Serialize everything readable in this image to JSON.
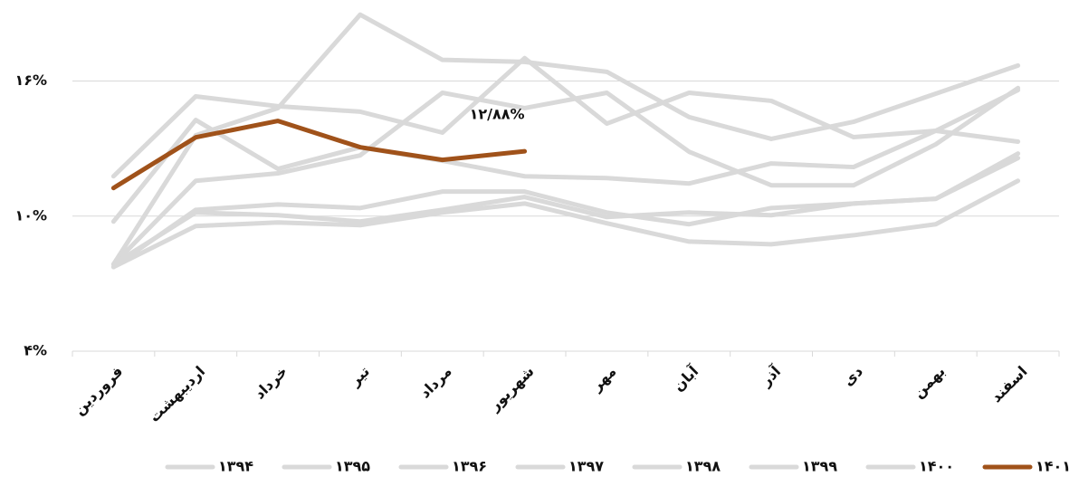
{
  "chart_data": {
    "type": "line",
    "categories": [
      "فروردین",
      "اردیبهشت",
      "خرداد",
      "تیر",
      "مرداد",
      "شهریور",
      "مهر",
      "آبان",
      "آذر",
      "دی",
      "بهمن",
      "اسفند"
    ],
    "series": [
      {
        "name": "۱۳۹۴",
        "color": "#d9d9d9",
        "values": [
          11.77,
          15.32,
          14.88,
          14.64,
          13.71,
          17.02,
          14.11,
          15.48,
          15.12,
          13.51,
          13.79,
          13.31
        ]
      },
      {
        "name": "۱۳۹۵",
        "color": "#d9d9d9",
        "values": [
          9.76,
          14.27,
          12.1,
          13.06,
          12.46,
          11.77,
          11.69,
          11.45,
          12.34,
          12.18,
          13.79,
          15.6
        ]
      },
      {
        "name": "۱۳۹۶",
        "color": "#d9d9d9",
        "values": [
          7.86,
          11.57,
          11.9,
          12.7,
          15.48,
          14.8,
          15.48,
          12.86,
          11.37,
          11.37,
          13.19,
          15.69
        ]
      },
      {
        "name": "۱۳۹۷",
        "color": "#d9d9d9",
        "values": [
          7.86,
          13.59,
          14.8,
          18.95,
          16.94,
          16.85,
          16.41,
          14.4,
          13.43,
          14.19,
          15.44,
          16.69
        ]
      },
      {
        "name": "۱۳۹۸",
        "color": "#d9d9d9",
        "values": [
          7.74,
          10.28,
          10.52,
          10.36,
          11.09,
          11.09,
          10.16,
          9.64,
          10.36,
          10.56,
          10.77,
          12.78
        ]
      },
      {
        "name": "۱۳۹۹",
        "color": "#d9d9d9",
        "values": [
          7.86,
          10.16,
          10.04,
          9.76,
          10.28,
          10.85,
          9.96,
          10.16,
          10.04,
          10.56,
          10.77,
          12.58
        ]
      },
      {
        "name": "۱۴۰۰",
        "color": "#d9d9d9",
        "values": [
          7.74,
          9.56,
          9.72,
          9.6,
          10.16,
          10.56,
          9.68,
          8.87,
          8.75,
          9.15,
          9.64,
          11.57
        ]
      },
      {
        "name": "۱۴۰۱",
        "color": "#a0521a",
        "values": [
          11.25,
          13.5,
          14.23,
          13.06,
          12.5,
          12.88,
          null,
          null,
          null,
          null,
          null,
          null
        ]
      }
    ],
    "annotations": [
      "۱۲/۸۸%"
    ],
    "ylim": [
      4,
      19.4
    ],
    "yticks": [
      {
        "value": 4,
        "label": "۴%"
      },
      {
        "value": 10,
        "label": "۱۰%"
      },
      {
        "value": 16,
        "label": "۱۶%"
      }
    ],
    "grid": true,
    "legend": "bottom"
  }
}
